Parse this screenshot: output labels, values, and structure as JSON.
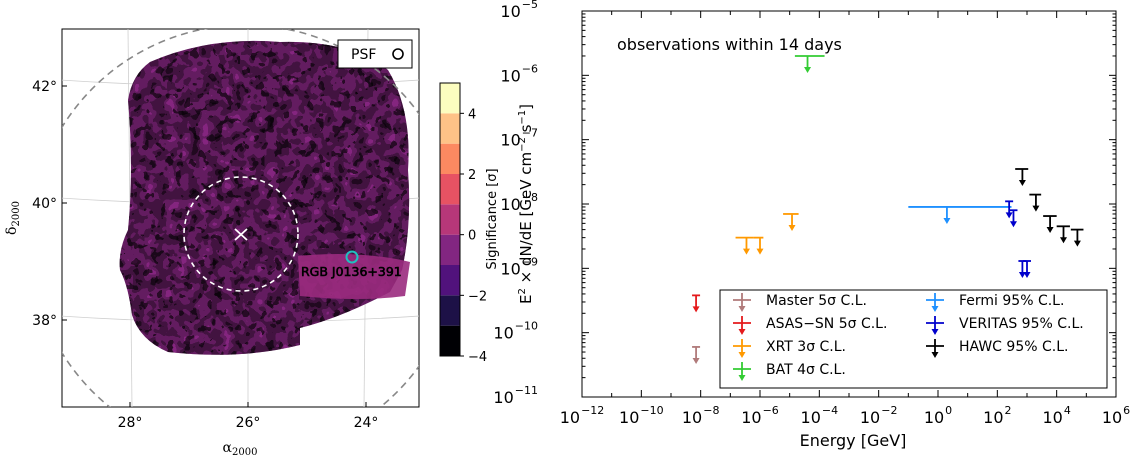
{
  "chart_data": [
    {
      "type": "heatmap",
      "xlabel": "α2000",
      "ylabel": "δ2000",
      "x_ticks": [
        "28°",
        "26°",
        "24°"
      ],
      "y_ticks": [
        "42°",
        "40°",
        "38°"
      ],
      "xlim": [
        29.1,
        22.9
      ],
      "ylim": [
        36.55,
        43.1
      ],
      "psf_label": "PSF",
      "marker_label": "RGB J0136+391",
      "marker_position": [
        24.25,
        39.1
      ],
      "center_marker": [
        26.05,
        39.45
      ],
      "colorbar": {
        "label": "Significance [σ]",
        "ticks": [
          "−4",
          "−2",
          "0",
          "2",
          "4"
        ],
        "range": [
          -4,
          5
        ],
        "levels": [
          -4,
          -3,
          -2,
          -1,
          0,
          1,
          2,
          3,
          4,
          5
        ],
        "colors": [
          "#000004",
          "#1d1147",
          "#51127c",
          "#822681",
          "#b73779",
          "#e75263",
          "#fc8961",
          "#fec287",
          "#fcfdbf"
        ]
      }
    },
    {
      "type": "scatter",
      "title": "observations within 14 days",
      "xlabel": "Energy [GeV]",
      "ylabel": "E² × dN/dE [GeV cm⁻² s⁻¹]",
      "x_scale": "log",
      "y_scale": "log",
      "xlim": [
        1e-12,
        1000000.0
      ],
      "ylim": [
        1e-11,
        1e-05
      ],
      "x_tick_labels": [
        {
          "base": "10",
          "exp": "−12"
        },
        {
          "base": "10",
          "exp": "−10"
        },
        {
          "base": "10",
          "exp": "−8"
        },
        {
          "base": "10",
          "exp": "−6"
        },
        {
          "base": "10",
          "exp": "−4"
        },
        {
          "base": "10",
          "exp": "−2"
        },
        {
          "base": "10",
          "exp": "0"
        },
        {
          "base": "10",
          "exp": "2"
        },
        {
          "base": "10",
          "exp": "4"
        },
        {
          "base": "10",
          "exp": "6"
        }
      ],
      "y_tick_labels": [
        {
          "base": "10",
          "exp": "−11"
        },
        {
          "base": "10",
          "exp": "−10"
        },
        {
          "base": "10",
          "exp": "−9"
        },
        {
          "base": "10",
          "exp": "−8"
        },
        {
          "base": "10",
          "exp": "−7"
        },
        {
          "base": "10",
          "exp": "−6"
        },
        {
          "base": "10",
          "exp": "−5"
        }
      ],
      "legend_position": "bottom-right",
      "series": [
        {
          "name": "Master 5σ C.L.",
          "color": "#b07a7a",
          "points": [
            {
              "x": 7e-09,
              "y": 6e-11
            }
          ]
        },
        {
          "name": "ASAS−SN 5σ C.L.",
          "color": "#e41a1c",
          "points": [
            {
              "x": 7e-09,
              "y": 3.8e-10
            }
          ]
        },
        {
          "name": "XRT 3σ C.L.",
          "color": "#ff9900",
          "points": [
            {
              "x": 3.5e-07,
              "y": 3e-09,
              "xerr": [
                1.5e-07,
                6e-07
              ]
            },
            {
              "x": 1e-06,
              "y": 3e-09,
              "xerr": [
                6e-07,
                1.3e-06
              ]
            },
            {
              "x": 1.2e-05,
              "y": 7e-09,
              "xerr": [
                6e-06,
                2e-05
              ]
            }
          ]
        },
        {
          "name": "BAT 4σ C.L.",
          "color": "#33cc33",
          "points": [
            {
              "x": 4e-05,
              "y": 2e-06,
              "xerr": [
                1.5e-05,
                0.00015
              ]
            }
          ]
        },
        {
          "name": "Fermi 95% C.L.",
          "color": "#1e90ff",
          "points": [
            {
              "x": 2,
              "y": 9e-09,
              "xerr": [
                0.1,
                300
              ]
            }
          ]
        },
        {
          "name": "VERITAS 95% C.L.",
          "color": "#0000cc",
          "points": [
            {
              "x": 250,
              "y": 1.1e-08
            },
            {
              "x": 350,
              "y": 8e-09
            },
            {
              "x": 700,
              "y": 1.3e-09
            },
            {
              "x": 1000,
              "y": 1.3e-09
            }
          ]
        },
        {
          "name": "HAWC 95% C.L.",
          "color": "#000000",
          "points": [
            {
              "x": 700,
              "y": 3.5e-08,
              "xerr": [
                400,
                1100
              ]
            },
            {
              "x": 2000,
              "y": 1.4e-08,
              "xerr": [
                1200,
                3000
              ]
            },
            {
              "x": 6000,
              "y": 6.5e-09,
              "xerr": [
                3500,
                10000
              ]
            },
            {
              "x": 17000,
              "y": 4.5e-09,
              "xerr": [
                10000,
                28000
              ]
            },
            {
              "x": 50000,
              "y": 4e-09,
              "xerr": [
                30000,
                80000
              ]
            }
          ]
        }
      ]
    }
  ]
}
